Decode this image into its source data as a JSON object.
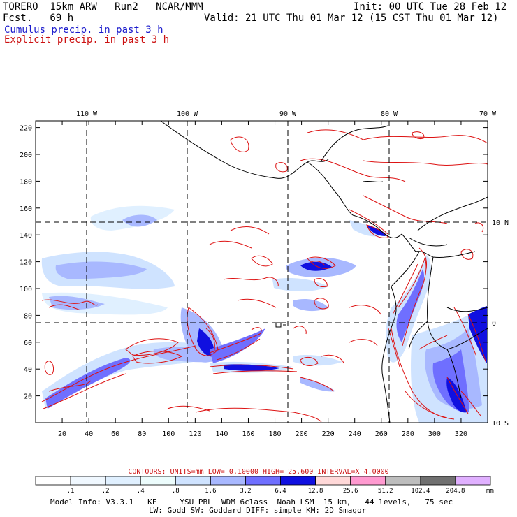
{
  "header": {
    "model": "TORERO  15km ARW   Run2   NCAR/MMM",
    "init": "Init: 00 UTC Tue 28 Feb 12",
    "fcst": "Fcst.   69 h",
    "valid": "Valid: 21 UTC Thu 01 Mar 12 (15 CST Thu 01 Mar 12)",
    "cumulus": "Cumulus precip. in past 3 h",
    "explicit": "Explicit precip. in past 3 h"
  },
  "map": {
    "x_ticks": [
      "20",
      "40",
      "60",
      "80",
      "100",
      "120",
      "140",
      "160",
      "180",
      "200",
      "220",
      "240",
      "260",
      "280",
      "300",
      "320"
    ],
    "y_ticks": [
      "20",
      "40",
      "60",
      "80",
      "100",
      "120",
      "140",
      "160",
      "180",
      "200",
      "220"
    ],
    "lon_labels": [
      "110 W",
      "100 W",
      "90 W",
      "80 W",
      "70 W"
    ],
    "lat_labels": [
      "10 N",
      "0",
      "10 S"
    ]
  },
  "contours": {
    "units_label": "CONTOURS:  UNITS=mm",
    "low": "LOW= 0.10000",
    "high": "HIGH=  25.600",
    "interval": "INTERVAL=X  4.0000"
  },
  "colorbar": {
    "unit": "mm",
    "labels": [
      ".1",
      ".2",
      ".4",
      ".8",
      "1.6",
      "3.2",
      "6.4",
      "12.8",
      "25.6",
      "51.2",
      "102.4",
      "204.8"
    ],
    "colors": [
      "#ffffff",
      "#f0f8ff",
      "#e0f0ff",
      "#ecfcfc",
      "#cfe3ff",
      "#a8b8ff",
      "#6f6fff",
      "#1010e0",
      "#ffd8d8",
      "#ff9ad0",
      "#bdbdbd",
      "#707070",
      "#e0b0ff"
    ]
  },
  "footer": {
    "line1": "Model Info: V3.3.1   KF     YSU PBL  WDM 6class  Noah LSM  15 km,   44 levels,   75 sec",
    "line2": "LW: Godd SW: Goddard DIFF: simple KM: 2D Smagor"
  }
}
